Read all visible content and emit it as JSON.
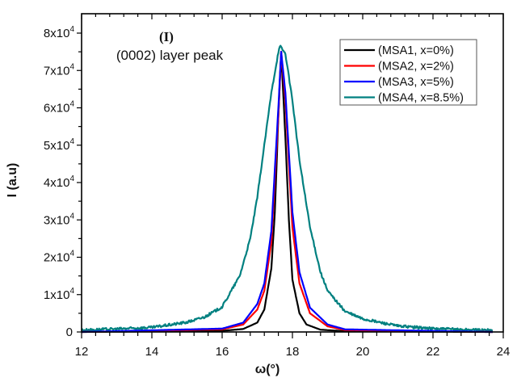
{
  "chart_data": {
    "type": "line",
    "title": "",
    "annotations": [
      "(I)",
      "(0002) layer peak"
    ],
    "xlabel": "ω(°)",
    "ylabel": "I (a.u)",
    "xlim": [
      12,
      24
    ],
    "ylim": [
      0,
      85000
    ],
    "x_ticks": [
      12,
      14,
      16,
      18,
      20,
      22,
      24
    ],
    "x_tick_labels": [
      "12",
      "14",
      "16",
      "18",
      "20",
      "22",
      "24"
    ],
    "y_ticks": [
      0,
      10000,
      20000,
      30000,
      40000,
      50000,
      60000,
      70000,
      80000
    ],
    "y_tick_labels": [
      {
        "mantissa": "0",
        "exp": ""
      },
      {
        "mantissa": "1x10",
        "exp": "4"
      },
      {
        "mantissa": "2x10",
        "exp": "4"
      },
      {
        "mantissa": "3x10",
        "exp": "4"
      },
      {
        "mantissa": "4x10",
        "exp": "4"
      },
      {
        "mantissa": "5x10",
        "exp": "4"
      },
      {
        "mantissa": "6x10",
        "exp": "4"
      },
      {
        "mantissa": "7x10",
        "exp": "4"
      },
      {
        "mantissa": "8x10",
        "exp": "4"
      }
    ],
    "grid": false,
    "legend": "top-right",
    "series": [
      {
        "name": "(MSA1, x=0%)",
        "color": "#000000",
        "center": 17.68,
        "peak": 75000,
        "hwhm": 0.14,
        "x_end": 23.7,
        "x": [
          12,
          16,
          16.6,
          17,
          17.2,
          17.4,
          17.5,
          17.6,
          17.68,
          17.8,
          17.9,
          18.0,
          18.2,
          18.4,
          18.8,
          19.5,
          23.7
        ],
        "y": [
          0,
          300,
          800,
          2500,
          6000,
          17000,
          32000,
          58000,
          75000,
          52000,
          30000,
          14000,
          5000,
          2000,
          600,
          200,
          0
        ]
      },
      {
        "name": "(MSA2, x=2%)",
        "color": "#ff0000",
        "center": 17.68,
        "peak": 75000,
        "hwhm": 0.21,
        "x_end": 23.7,
        "x": [
          12,
          16,
          16.6,
          17,
          17.2,
          17.4,
          17.6,
          17.68,
          17.8,
          18.0,
          18.2,
          18.5,
          19.0,
          19.5,
          23.7
        ],
        "y": [
          0,
          700,
          2000,
          6000,
          11000,
          24000,
          58000,
          75000,
          62000,
          28000,
          13000,
          5000,
          1500,
          500,
          0
        ]
      },
      {
        "name": "(MSA3, x=5%)",
        "color": "#0000ff",
        "center": 17.68,
        "peak": 75000,
        "hwhm": 0.24,
        "x_end": 23.7,
        "x": [
          12,
          16,
          16.6,
          17,
          17.2,
          17.4,
          17.6,
          17.68,
          17.8,
          18.0,
          18.2,
          18.5,
          19.0,
          19.5,
          23.7
        ],
        "y": [
          0,
          900,
          2500,
          7500,
          13000,
          27000,
          60000,
          75000,
          64000,
          32000,
          16000,
          6500,
          2000,
          700,
          0
        ]
      },
      {
        "name": "(MSA4, x=8.5%)",
        "color": "#008080",
        "center": 17.65,
        "peak": 76500,
        "hwhm": 0.55,
        "x_end": 23.7,
        "x": [
          12,
          13,
          14,
          15,
          15.5,
          16,
          16.5,
          16.8,
          17,
          17.2,
          17.4,
          17.6,
          17.65,
          17.8,
          18.0,
          18.2,
          18.5,
          18.8,
          19.0,
          19.5,
          20,
          21,
          22,
          23.7
        ],
        "y": [
          500,
          800,
          1200,
          2600,
          4000,
          6700,
          15000,
          25000,
          36000,
          50000,
          64000,
          75000,
          76500,
          74500,
          62000,
          46000,
          28000,
          16000,
          11000,
          5500,
          3500,
          1600,
          900,
          400
        ]
      }
    ]
  }
}
